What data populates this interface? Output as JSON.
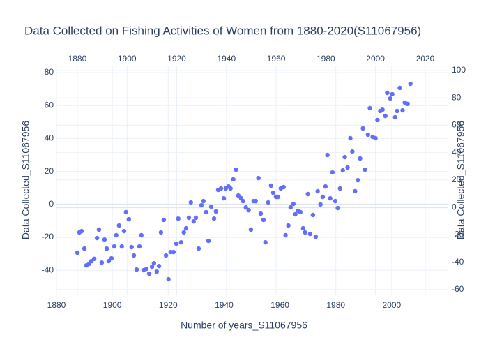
{
  "chart_data": {
    "type": "scatter",
    "title": "Data Collected on Fishing Activities of Women from 1880-2020(S11067956)",
    "xlabel": "Number of years_S11067956",
    "ylabel": "Data Collected_S11067956",
    "y2label": "Data Collected_S11067956",
    "color": "#636efa",
    "grid": true,
    "xlim": [
      1880,
      2020
    ],
    "xticks": [
      1880,
      1900,
      1920,
      1940,
      1960,
      1980,
      2000
    ],
    "x2lim": [
      1871.6,
      2029
    ],
    "x2ticks": [
      1880,
      1900,
      1920,
      1940,
      1960,
      1980,
      2000,
      2020
    ],
    "ylim": [
      -54.7,
      83.8
    ],
    "yticks": [
      -40,
      -20,
      0,
      20,
      40,
      60,
      80
    ],
    "y2lim": [
      -63.6,
      103
    ],
    "y2ticks": [
      -60,
      -40,
      -20,
      0,
      20,
      40,
      60,
      80,
      100
    ],
    "x": [
      1887.5,
      1888.2,
      1889,
      1890,
      1890.7,
      1891.7,
      1892.5,
      1893.5,
      1894.5,
      1895.2,
      1896.2,
      1897.2,
      1898,
      1898.7,
      1899.7,
      1900.7,
      1901.4,
      1902.4,
      1903.4,
      1904.2,
      1904.9,
      1905.9,
      1906.9,
      1907.7,
      1908.7,
      1909.7,
      1910.4,
      1911.2,
      1912.2,
      1913.2,
      1914.2,
      1914.9,
      1915.9,
      1916.7,
      1917.4,
      1918.4,
      1919.2,
      1920.1,
      1920.9,
      1921.9,
      1922.9,
      1923.6,
      1924.6,
      1925.6,
      1926.4,
      1927.4,
      1928.1,
      1929.1,
      1929.9,
      1930.9,
      1931.9,
      1932.6,
      1933.6,
      1934.4,
      1935.4,
      1936.4,
      1937.1,
      1937.9,
      1938.9,
      1939.9,
      1940.6,
      1941.6,
      1942.3,
      1943.3,
      1944.3,
      1945.1,
      1946.1,
      1946.8,
      1947.8,
      1948.8,
      1949.6,
      1950.6,
      1951.3,
      1952.3,
      1953.1,
      1954.1,
      1954.8,
      1955.8,
      1956.8,
      1957.6,
      1958.6,
      1959.3,
      1960.3,
      1961.3,
      1962,
      1963,
      1963.8,
      1964.8,
      1965.5,
      1966.5,
      1967.3,
      1968.3,
      1969,
      1970,
      1970.8,
      1971.8,
      1972.8,
      1973.5,
      1974.5,
      1975.3,
      1976.3,
      1977,
      1978,
      1978.8,
      1979.8,
      1980.7,
      1981.5,
      1982.5,
      1983.2,
      1984.2,
      1985.2,
      1985.9,
      1986.9,
      1987.9,
      1988.7,
      1989.7,
      1990.4,
      1991.5,
      1992.2,
      1993.2,
      1994.2,
      1994.9,
      1995.9,
      1996.7,
      1997.7,
      1998.4,
      1999.5,
      2000.2,
      2001.2,
      2001.9,
      2002.9,
      2003.9,
      2004.7,
      2005.7,
      2006.7
    ],
    "values": [
      -29.3,
      -17,
      -16.2,
      -26.8,
      -37,
      -36,
      -34.4,
      -33,
      -20.4,
      -15.3,
      -35.3,
      -21.3,
      -26.8,
      -34.4,
      -32.7,
      -25.5,
      -18.7,
      -12.8,
      -25.5,
      -16.2,
      -4.7,
      -9,
      -25.9,
      -31,
      -39.5,
      -25.5,
      -18.7,
      -39.9,
      -39.1,
      -42,
      -37.8,
      -35.7,
      -40.8,
      -37.4,
      -17,
      -9.4,
      -31,
      -45.4,
      -28.9,
      -28.9,
      -23.8,
      -8.6,
      -23,
      -17,
      -14.5,
      -8.1,
      1.2,
      -10.3,
      -8.1,
      -26.8,
      -0.5,
      2,
      -4.7,
      -22.1,
      -1.4,
      -8.6,
      -4.3,
      8.8,
      9.7,
      3.7,
      9.7,
      10.9,
      9.7,
      15.2,
      21.1,
      5.4,
      3.7,
      2,
      -1.8,
      -3.5,
      -15.3,
      2,
      2,
      16,
      -5.6,
      -9.4,
      -23,
      1.2,
      11.4,
      7.1,
      4.6,
      4.6,
      9.7,
      10.5,
      -18.7,
      -12.8,
      -1.8,
      0.3,
      -6,
      -3.9,
      -4.7,
      -14.5,
      -17,
      6.3,
      -17.9,
      -6.4,
      -19.6,
      8,
      0,
      4.6,
      10.9,
      30,
      3.7,
      19.4,
      2,
      -2.2,
      9.7,
      20.7,
      28.7,
      22.4,
      40.2,
      32.1,
      8,
      14.7,
      27.9,
      46.1,
      21.1,
      42.3,
      58.4,
      41,
      40.2,
      51.2,
      56.7,
      57.5,
      53.7,
      67.7,
      64.3,
      66.9,
      52.9,
      56.7,
      70.7,
      57.1,
      61.8,
      61,
      73.2
    ]
  }
}
